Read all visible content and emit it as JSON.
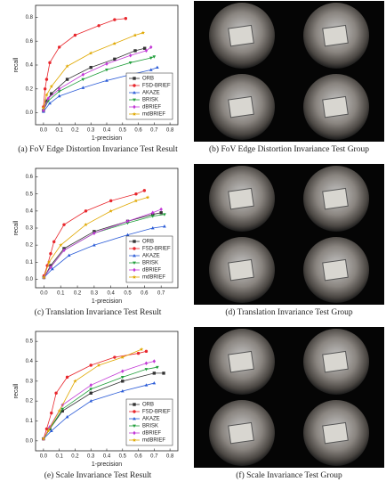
{
  "chart_data": [
    {
      "type": "line",
      "caption": "(a) FoV Edge Distortion Invariance Test Result",
      "x_label": "1-precision",
      "y_label": "recall",
      "xlim": [
        -0.05,
        0.85
      ],
      "ylim": [
        -0.1,
        0.9
      ],
      "legend": "lower right",
      "xticks": [
        {
          "value": 0,
          "label": "0.0"
        },
        0.1,
        0.2,
        0.3,
        0.4,
        0.5,
        0.6,
        0.7,
        0.8
      ],
      "yticks": [
        {
          "value": 0,
          "label": "0.0"
        },
        0.2,
        0.4,
        0.6,
        0.8
      ],
      "series": [
        {
          "name": "ORB",
          "color": "#333333",
          "marker": "square",
          "x": [
            0,
            0.02,
            0.05,
            0.15,
            0.3,
            0.45,
            0.58,
            0.64
          ],
          "values": [
            0.02,
            0.1,
            0.16,
            0.28,
            0.38,
            0.45,
            0.52,
            0.54
          ]
        },
        {
          "name": "FSD-BRIEF",
          "color": "#e8262c",
          "marker": "circle",
          "x": [
            0,
            0.01,
            0.02,
            0.04,
            0.1,
            0.2,
            0.35,
            0.45,
            0.52
          ],
          "values": [
            0.05,
            0.2,
            0.28,
            0.42,
            0.55,
            0.65,
            0.73,
            0.78,
            0.79
          ]
        },
        {
          "name": "AKAZE",
          "color": "#2a5bd7",
          "marker": "triangle-up",
          "x": [
            0,
            0.04,
            0.1,
            0.25,
            0.4,
            0.55,
            0.68,
            0.72
          ],
          "values": [
            0.01,
            0.08,
            0.14,
            0.21,
            0.27,
            0.32,
            0.36,
            0.38
          ]
        },
        {
          "name": "BRISK",
          "color": "#1f9e3a",
          "marker": "triangle-down",
          "x": [
            0,
            0.03,
            0.1,
            0.25,
            0.4,
            0.55,
            0.68,
            0.7
          ],
          "values": [
            0.02,
            0.1,
            0.18,
            0.28,
            0.36,
            0.42,
            0.46,
            0.47
          ]
        },
        {
          "name": "dBRIEF",
          "color": "#c238d6",
          "marker": "diamond",
          "x": [
            0,
            0.03,
            0.1,
            0.25,
            0.4,
            0.55,
            0.65,
            0.68
          ],
          "values": [
            0.02,
            0.12,
            0.2,
            0.32,
            0.41,
            0.48,
            0.52,
            0.55
          ]
        },
        {
          "name": "mdBRIEF",
          "color": "#e0a800",
          "marker": "star",
          "x": [
            0,
            0.02,
            0.05,
            0.15,
            0.3,
            0.45,
            0.58,
            0.63
          ],
          "values": [
            0.04,
            0.15,
            0.22,
            0.39,
            0.5,
            0.58,
            0.65,
            0.67
          ]
        }
      ]
    },
    {
      "type": "line",
      "caption": "(c) Translation Invariance Test Result",
      "x_label": "1-precision",
      "y_label": "recall",
      "xlim": [
        -0.05,
        0.8
      ],
      "ylim": [
        -0.05,
        0.65
      ],
      "legend": "lower right",
      "xticks": [
        {
          "value": 0,
          "label": "0.0"
        },
        0.1,
        0.2,
        0.3,
        0.4,
        0.5,
        0.6,
        0.7
      ],
      "yticks": [
        {
          "value": 0,
          "label": "0.0"
        },
        0.1,
        0.2,
        0.3,
        0.4,
        0.5,
        0.6
      ],
      "series": [
        {
          "name": "ORB",
          "color": "#333333",
          "marker": "square",
          "x": [
            0,
            0.04,
            0.12,
            0.3,
            0.5,
            0.65,
            0.7
          ],
          "values": [
            0.01,
            0.08,
            0.18,
            0.28,
            0.34,
            0.38,
            0.39
          ]
        },
        {
          "name": "FSD-BRIEF",
          "color": "#e8262c",
          "marker": "circle",
          "x": [
            0,
            0.02,
            0.04,
            0.06,
            0.12,
            0.25,
            0.4,
            0.55,
            0.6
          ],
          "values": [
            0.02,
            0.08,
            0.15,
            0.22,
            0.32,
            0.4,
            0.46,
            0.5,
            0.52
          ]
        },
        {
          "name": "AKAZE",
          "color": "#2a5bd7",
          "marker": "triangle-up",
          "x": [
            0,
            0.05,
            0.15,
            0.3,
            0.5,
            0.65,
            0.72
          ],
          "values": [
            0.01,
            0.06,
            0.14,
            0.2,
            0.26,
            0.3,
            0.31
          ]
        },
        {
          "name": "BRISK",
          "color": "#1f9e3a",
          "marker": "triangle-down",
          "x": [
            0,
            0.04,
            0.12,
            0.3,
            0.5,
            0.65,
            0.72
          ],
          "values": [
            0.01,
            0.07,
            0.17,
            0.27,
            0.33,
            0.37,
            0.38
          ]
        },
        {
          "name": "dBRIEF",
          "color": "#c238d6",
          "marker": "diamond",
          "x": [
            0,
            0.04,
            0.12,
            0.3,
            0.5,
            0.65,
            0.7
          ],
          "values": [
            0.01,
            0.07,
            0.17,
            0.27,
            0.34,
            0.39,
            0.41
          ]
        },
        {
          "name": "mdBRIEF",
          "color": "#e0a800",
          "marker": "star",
          "x": [
            0,
            0.03,
            0.1,
            0.25,
            0.4,
            0.55,
            0.62
          ],
          "values": [
            0.01,
            0.1,
            0.2,
            0.32,
            0.4,
            0.46,
            0.48
          ]
        }
      ]
    },
    {
      "type": "line",
      "caption": "(e) Scale Invariance Test Result",
      "x_label": "1-precision",
      "y_label": "recall",
      "xlim": [
        -0.05,
        0.85
      ],
      "ylim": [
        -0.05,
        0.55
      ],
      "legend": "lower right",
      "xticks": [
        {
          "value": 0,
          "label": "0.0"
        },
        0.1,
        0.2,
        0.3,
        0.4,
        0.5,
        0.6,
        0.7,
        0.8
      ],
      "yticks": [
        {
          "value": 0,
          "label": "0.0"
        },
        0.1,
        0.2,
        0.3,
        0.4,
        0.5
      ],
      "series": [
        {
          "name": "ORB",
          "color": "#333333",
          "marker": "square",
          "x": [
            0,
            0.04,
            0.12,
            0.3,
            0.5,
            0.7,
            0.76
          ],
          "values": [
            0.01,
            0.06,
            0.15,
            0.24,
            0.3,
            0.34,
            0.34
          ]
        },
        {
          "name": "FSD-BRIEF",
          "color": "#e8262c",
          "marker": "circle",
          "x": [
            0,
            0.02,
            0.05,
            0.08,
            0.15,
            0.3,
            0.45,
            0.6,
            0.65
          ],
          "values": [
            0.01,
            0.06,
            0.14,
            0.24,
            0.32,
            0.38,
            0.42,
            0.44,
            0.45
          ]
        },
        {
          "name": "AKAZE",
          "color": "#2a5bd7",
          "marker": "triangle-up",
          "x": [
            0,
            0.05,
            0.15,
            0.3,
            0.5,
            0.65,
            0.7
          ],
          "values": [
            0.01,
            0.05,
            0.12,
            0.2,
            0.25,
            0.28,
            0.29
          ]
        },
        {
          "name": "BRISK",
          "color": "#1f9e3a",
          "marker": "triangle-down",
          "x": [
            0,
            0.04,
            0.12,
            0.3,
            0.5,
            0.65,
            0.72
          ],
          "values": [
            0.01,
            0.06,
            0.16,
            0.26,
            0.32,
            0.36,
            0.37
          ]
        },
        {
          "name": "dBRIEF",
          "color": "#c238d6",
          "marker": "diamond",
          "x": [
            0,
            0.04,
            0.12,
            0.3,
            0.5,
            0.65,
            0.7
          ],
          "values": [
            0.01,
            0.07,
            0.18,
            0.28,
            0.35,
            0.39,
            0.4
          ]
        },
        {
          "name": "mdBRIEF",
          "color": "#e0a800",
          "marker": "star",
          "x": [
            0,
            0.03,
            0.1,
            0.2,
            0.35,
            0.5,
            0.62
          ],
          "values": [
            0.01,
            0.05,
            0.15,
            0.3,
            0.38,
            0.42,
            0.46
          ]
        }
      ]
    }
  ],
  "image_panels": [
    {
      "caption": "(b) FoV Edge Distortion Invariance Test Group"
    },
    {
      "caption": "(d) Translation Invariance Test Group"
    },
    {
      "caption": "(f) Scale Invariance Test Group"
    }
  ]
}
